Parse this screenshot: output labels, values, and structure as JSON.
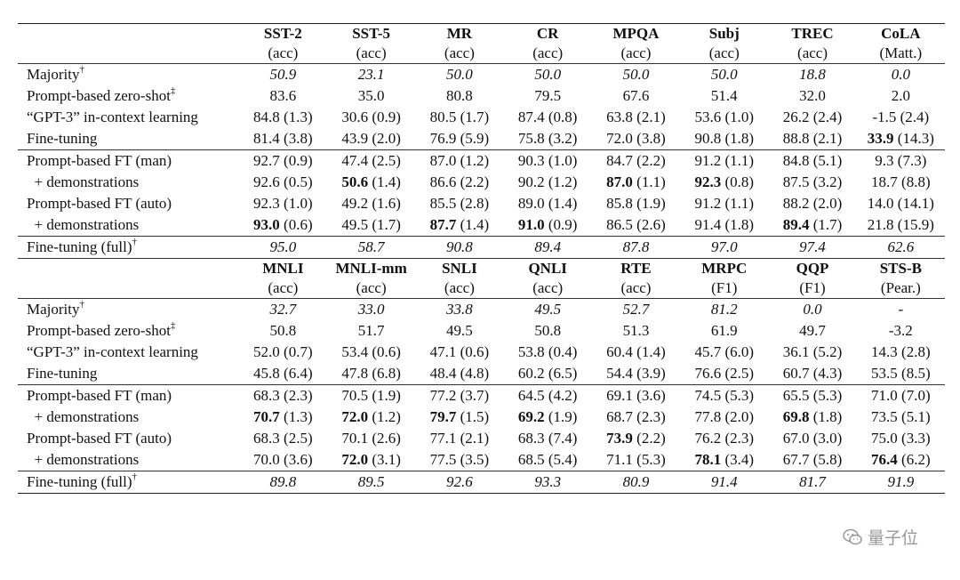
{
  "watermark": {
    "text": "量子位",
    "icon": "wechat-bubble-icon"
  },
  "sections": [
    {
      "headers": [
        {
          "name": "SST-2",
          "metric": "(acc)"
        },
        {
          "name": "SST-5",
          "metric": "(acc)"
        },
        {
          "name": "MR",
          "metric": "(acc)"
        },
        {
          "name": "CR",
          "metric": "(acc)"
        },
        {
          "name": "MPQA",
          "metric": "(acc)"
        },
        {
          "name": "Subj",
          "metric": "(acc)"
        },
        {
          "name": "TREC",
          "metric": "(acc)"
        },
        {
          "name": "CoLA",
          "metric": "(Matt.)"
        }
      ],
      "groups": [
        [
          {
            "label": "Majority",
            "sup": "†",
            "italic": true,
            "cells": [
              {
                "v": "50.9"
              },
              {
                "v": "23.1"
              },
              {
                "v": "50.0"
              },
              {
                "v": "50.0"
              },
              {
                "v": "50.0"
              },
              {
                "v": "50.0"
              },
              {
                "v": "18.8"
              },
              {
                "v": "0.0"
              }
            ]
          },
          {
            "label": "Prompt-based zero-shot",
            "sup": "‡",
            "cells": [
              {
                "v": "83.6"
              },
              {
                "v": "35.0"
              },
              {
                "v": "80.8"
              },
              {
                "v": "79.5"
              },
              {
                "v": "67.6"
              },
              {
                "v": "51.4"
              },
              {
                "v": "32.0"
              },
              {
                "v": "2.0"
              }
            ]
          },
          {
            "label": "“GPT-3” in-context learning",
            "cells": [
              {
                "v": "84.8",
                "s": "(1.3)"
              },
              {
                "v": "30.6",
                "s": "(0.9)"
              },
              {
                "v": "80.5",
                "s": "(1.7)"
              },
              {
                "v": "87.4",
                "s": "(0.8)"
              },
              {
                "v": "63.8",
                "s": "(2.1)"
              },
              {
                "v": "53.6",
                "s": "(1.0)"
              },
              {
                "v": "26.2",
                "s": "(2.4)"
              },
              {
                "v": "-1.5",
                "s": "(2.4)"
              }
            ]
          },
          {
            "label": "Fine-tuning",
            "cells": [
              {
                "v": "81.4",
                "s": "(3.8)"
              },
              {
                "v": "43.9",
                "s": "(2.0)"
              },
              {
                "v": "76.9",
                "s": "(5.9)"
              },
              {
                "v": "75.8",
                "s": "(3.2)"
              },
              {
                "v": "72.0",
                "s": "(3.8)"
              },
              {
                "v": "90.8",
                "s": "(1.8)"
              },
              {
                "v": "88.8",
                "s": "(2.1)"
              },
              {
                "v": "33.9",
                "s": "(14.3)",
                "b": true
              }
            ]
          }
        ],
        [
          {
            "label": "Prompt-based FT (man)",
            "cells": [
              {
                "v": "92.7",
                "s": "(0.9)"
              },
              {
                "v": "47.4",
                "s": "(2.5)"
              },
              {
                "v": "87.0",
                "s": "(1.2)"
              },
              {
                "v": "90.3",
                "s": "(1.0)"
              },
              {
                "v": "84.7",
                "s": "(2.2)"
              },
              {
                "v": "91.2",
                "s": "(1.1)"
              },
              {
                "v": "84.8",
                "s": "(5.1)"
              },
              {
                "v": "9.3",
                "s": "(7.3)"
              }
            ]
          },
          {
            "label": "  + demonstrations",
            "indent": true,
            "cells": [
              {
                "v": "92.6",
                "s": "(0.5)"
              },
              {
                "v": "50.6",
                "s": "(1.4)",
                "b": true
              },
              {
                "v": "86.6",
                "s": "(2.2)"
              },
              {
                "v": "90.2",
                "s": "(1.2)"
              },
              {
                "v": "87.0",
                "s": "(1.1)",
                "b": true
              },
              {
                "v": "92.3",
                "s": "(0.8)",
                "b": true
              },
              {
                "v": "87.5",
                "s": "(3.2)"
              },
              {
                "v": "18.7",
                "s": "(8.8)"
              }
            ]
          },
          {
            "label": "Prompt-based FT (auto)",
            "cells": [
              {
                "v": "92.3",
                "s": "(1.0)"
              },
              {
                "v": "49.2",
                "s": "(1.6)"
              },
              {
                "v": "85.5",
                "s": "(2.8)"
              },
              {
                "v": "89.0",
                "s": "(1.4)"
              },
              {
                "v": "85.8",
                "s": "(1.9)"
              },
              {
                "v": "91.2",
                "s": "(1.1)"
              },
              {
                "v": "88.2",
                "s": "(2.0)"
              },
              {
                "v": "14.0",
                "s": "(14.1)"
              }
            ]
          },
          {
            "label": "  + demonstrations",
            "indent": true,
            "cells": [
              {
                "v": "93.0",
                "s": "(0.6)",
                "b": true
              },
              {
                "v": "49.5",
                "s": "(1.7)"
              },
              {
                "v": "87.7",
                "s": "(1.4)",
                "b": true
              },
              {
                "v": "91.0",
                "s": "(0.9)",
                "b": true
              },
              {
                "v": "86.5",
                "s": "(2.6)"
              },
              {
                "v": "91.4",
                "s": "(1.8)"
              },
              {
                "v": "89.4",
                "s": "(1.7)",
                "b": true
              },
              {
                "v": "21.8",
                "s": "(15.9)"
              }
            ]
          }
        ],
        [
          {
            "label": "Fine-tuning (full)",
            "sup": "†",
            "italic": true,
            "cells": [
              {
                "v": "95.0"
              },
              {
                "v": "58.7"
              },
              {
                "v": "90.8"
              },
              {
                "v": "89.4"
              },
              {
                "v": "87.8"
              },
              {
                "v": "97.0"
              },
              {
                "v": "97.4"
              },
              {
                "v": "62.6"
              }
            ]
          }
        ]
      ]
    },
    {
      "headers": [
        {
          "name": "MNLI",
          "metric": "(acc)"
        },
        {
          "name": "MNLI-mm",
          "metric": "(acc)"
        },
        {
          "name": "SNLI",
          "metric": "(acc)"
        },
        {
          "name": "QNLI",
          "metric": "(acc)"
        },
        {
          "name": "RTE",
          "metric": "(acc)"
        },
        {
          "name": "MRPC",
          "metric": "(F1)"
        },
        {
          "name": "QQP",
          "metric": "(F1)"
        },
        {
          "name": "STS-B",
          "metric": "(Pear.)"
        }
      ],
      "groups": [
        [
          {
            "label": "Majority",
            "sup": "†",
            "italic": true,
            "cells": [
              {
                "v": "32.7"
              },
              {
                "v": "33.0"
              },
              {
                "v": "33.8"
              },
              {
                "v": "49.5"
              },
              {
                "v": "52.7"
              },
              {
                "v": "81.2"
              },
              {
                "v": "0.0"
              },
              {
                "v": "-",
                "plain": true
              }
            ]
          },
          {
            "label": "Prompt-based zero-shot",
            "sup": "‡",
            "cells": [
              {
                "v": "50.8"
              },
              {
                "v": "51.7"
              },
              {
                "v": "49.5"
              },
              {
                "v": "50.8"
              },
              {
                "v": "51.3"
              },
              {
                "v": "61.9"
              },
              {
                "v": "49.7"
              },
              {
                "v": "-3.2"
              }
            ]
          },
          {
            "label": "“GPT-3” in-context learning",
            "cells": [
              {
                "v": "52.0",
                "s": "(0.7)"
              },
              {
                "v": "53.4",
                "s": "(0.6)"
              },
              {
                "v": "47.1",
                "s": "(0.6)"
              },
              {
                "v": "53.8",
                "s": "(0.4)"
              },
              {
                "v": "60.4",
                "s": "(1.4)"
              },
              {
                "v": "45.7",
                "s": "(6.0)"
              },
              {
                "v": "36.1",
                "s": "(5.2)"
              },
              {
                "v": "14.3",
                "s": "(2.8)"
              }
            ]
          },
          {
            "label": "Fine-tuning",
            "cells": [
              {
                "v": "45.8",
                "s": "(6.4)"
              },
              {
                "v": "47.8",
                "s": "(6.8)"
              },
              {
                "v": "48.4",
                "s": "(4.8)"
              },
              {
                "v": "60.2",
                "s": "(6.5)"
              },
              {
                "v": "54.4",
                "s": "(3.9)"
              },
              {
                "v": "76.6",
                "s": "(2.5)"
              },
              {
                "v": "60.7",
                "s": "(4.3)"
              },
              {
                "v": "53.5",
                "s": "(8.5)"
              }
            ]
          }
        ],
        [
          {
            "label": "Prompt-based FT (man)",
            "cells": [
              {
                "v": "68.3",
                "s": "(2.3)"
              },
              {
                "v": "70.5",
                "s": "(1.9)"
              },
              {
                "v": "77.2",
                "s": "(3.7)"
              },
              {
                "v": "64.5",
                "s": "(4.2)"
              },
              {
                "v": "69.1",
                "s": "(3.6)"
              },
              {
                "v": "74.5",
                "s": "(5.3)"
              },
              {
                "v": "65.5",
                "s": "(5.3)"
              },
              {
                "v": "71.0",
                "s": "(7.0)"
              }
            ]
          },
          {
            "label": "  + demonstrations",
            "indent": true,
            "cells": [
              {
                "v": "70.7",
                "s": "(1.3)",
                "b": true
              },
              {
                "v": "72.0",
                "s": "(1.2)",
                "b": true
              },
              {
                "v": "79.7",
                "s": "(1.5)",
                "b": true
              },
              {
                "v": "69.2",
                "s": "(1.9)",
                "b": true
              },
              {
                "v": "68.7",
                "s": "(2.3)"
              },
              {
                "v": "77.8",
                "s": "(2.0)"
              },
              {
                "v": "69.8",
                "s": "(1.8)",
                "b": true
              },
              {
                "v": "73.5",
                "s": "(5.1)"
              }
            ]
          },
          {
            "label": "Prompt-based FT (auto)",
            "cells": [
              {
                "v": "68.3",
                "s": "(2.5)"
              },
              {
                "v": "70.1",
                "s": "(2.6)"
              },
              {
                "v": "77.1",
                "s": "(2.1)"
              },
              {
                "v": "68.3",
                "s": "(7.4)"
              },
              {
                "v": "73.9",
                "s": "(2.2)",
                "b": true
              },
              {
                "v": "76.2",
                "s": "(2.3)"
              },
              {
                "v": "67.0",
                "s": "(3.0)"
              },
              {
                "v": "75.0",
                "s": "(3.3)"
              }
            ]
          },
          {
            "label": "  + demonstrations",
            "indent": true,
            "cells": [
              {
                "v": "70.0",
                "s": "(3.6)"
              },
              {
                "v": "72.0",
                "s": "(3.1)",
                "b": true
              },
              {
                "v": "77.5",
                "s": "(3.5)"
              },
              {
                "v": "68.5",
                "s": "(5.4)"
              },
              {
                "v": "71.1",
                "s": "(5.3)"
              },
              {
                "v": "78.1",
                "s": "(3.4)",
                "b": true
              },
              {
                "v": "67.7",
                "s": "(5.8)"
              },
              {
                "v": "76.4",
                "s": "(6.2)",
                "b": true
              }
            ]
          }
        ],
        [
          {
            "label": "Fine-tuning (full)",
            "sup": "†",
            "italic": true,
            "cells": [
              {
                "v": "89.8"
              },
              {
                "v": "89.5"
              },
              {
                "v": "92.6"
              },
              {
                "v": "93.3"
              },
              {
                "v": "80.9"
              },
              {
                "v": "91.4"
              },
              {
                "v": "81.7"
              },
              {
                "v": "91.9"
              }
            ]
          }
        ]
      ]
    }
  ]
}
